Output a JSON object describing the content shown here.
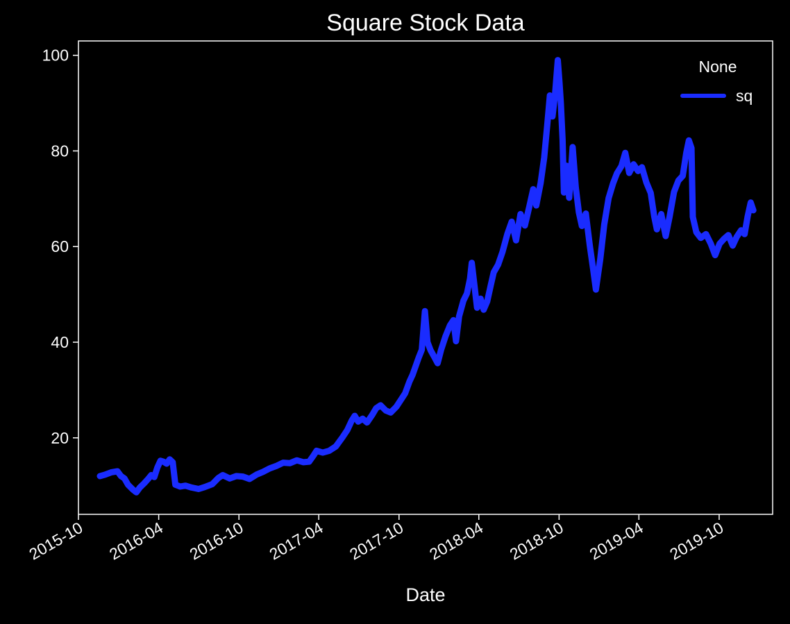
{
  "chart_data": {
    "type": "line",
    "title": "Square Stock Data",
    "xlabel": "Date",
    "ylabel": "",
    "x_ticks": [
      "2015-10",
      "2016-04",
      "2016-10",
      "2017-04",
      "2017-10",
      "2018-04",
      "2018-10",
      "2019-04",
      "2019-10"
    ],
    "y_ticks": [
      "20",
      "40",
      "60",
      "80",
      "100"
    ],
    "xlim": [
      "2015-10-01",
      "2020-01-31"
    ],
    "ylim": [
      4,
      103
    ],
    "grid": false,
    "legend": {
      "title": "None",
      "position": "top-right",
      "entries": [
        "sq"
      ]
    },
    "background": "#000000",
    "series": [
      {
        "name": "sq",
        "color": "#1a2cff",
        "points": [
          [
            "2015-11-19",
            12.0
          ],
          [
            "2015-12-01",
            12.3
          ],
          [
            "2015-12-15",
            12.8
          ],
          [
            "2015-12-29",
            13.0
          ],
          [
            "2016-01-06",
            12.0
          ],
          [
            "2016-01-14",
            11.5
          ],
          [
            "2016-01-22",
            10.2
          ],
          [
            "2016-02-02",
            9.2
          ],
          [
            "2016-02-10",
            8.6
          ],
          [
            "2016-02-18",
            9.6
          ],
          [
            "2016-02-28",
            10.5
          ],
          [
            "2016-03-08",
            11.4
          ],
          [
            "2016-03-15",
            12.2
          ],
          [
            "2016-03-22",
            11.8
          ],
          [
            "2016-03-29",
            13.8
          ],
          [
            "2016-04-05",
            15.2
          ],
          [
            "2016-04-12",
            15.0
          ],
          [
            "2016-04-19",
            14.6
          ],
          [
            "2016-04-26",
            15.5
          ],
          [
            "2016-05-03",
            14.9
          ],
          [
            "2016-05-09",
            10.2
          ],
          [
            "2016-05-20",
            9.8
          ],
          [
            "2016-06-01",
            10.0
          ],
          [
            "2016-06-15",
            9.6
          ],
          [
            "2016-07-01",
            9.3
          ],
          [
            "2016-07-15",
            9.7
          ],
          [
            "2016-08-01",
            10.3
          ],
          [
            "2016-08-15",
            11.6
          ],
          [
            "2016-08-25",
            12.2
          ],
          [
            "2016-09-10",
            11.5
          ],
          [
            "2016-09-25",
            12.0
          ],
          [
            "2016-10-10",
            11.9
          ],
          [
            "2016-10-25",
            11.4
          ],
          [
            "2016-11-10",
            12.3
          ],
          [
            "2016-11-25",
            12.9
          ],
          [
            "2016-12-10",
            13.6
          ],
          [
            "2016-12-25",
            14.1
          ],
          [
            "2017-01-10",
            14.8
          ],
          [
            "2017-01-25",
            14.7
          ],
          [
            "2017-02-10",
            15.3
          ],
          [
            "2017-02-25",
            14.9
          ],
          [
            "2017-03-10",
            15.0
          ],
          [
            "2017-03-20",
            16.3
          ],
          [
            "2017-03-27",
            17.3
          ],
          [
            "2017-04-10",
            16.9
          ],
          [
            "2017-04-25",
            17.3
          ],
          [
            "2017-05-10",
            18.2
          ],
          [
            "2017-05-25",
            20.1
          ],
          [
            "2017-06-05",
            21.6
          ],
          [
            "2017-06-15",
            23.6
          ],
          [
            "2017-06-22",
            24.6
          ],
          [
            "2017-06-30",
            23.4
          ],
          [
            "2017-07-10",
            24.0
          ],
          [
            "2017-07-20",
            23.2
          ],
          [
            "2017-08-01",
            24.8
          ],
          [
            "2017-08-10",
            26.2
          ],
          [
            "2017-08-20",
            26.8
          ],
          [
            "2017-09-01",
            25.7
          ],
          [
            "2017-09-12",
            25.3
          ],
          [
            "2017-09-25",
            26.5
          ],
          [
            "2017-10-05",
            27.9
          ],
          [
            "2017-10-15",
            29.3
          ],
          [
            "2017-10-25",
            31.8
          ],
          [
            "2017-11-01",
            33.2
          ],
          [
            "2017-11-08",
            35.0
          ],
          [
            "2017-11-15",
            36.8
          ],
          [
            "2017-11-22",
            38.4
          ],
          [
            "2017-11-29",
            46.5
          ],
          [
            "2017-12-05",
            40.0
          ],
          [
            "2017-12-12",
            38.3
          ],
          [
            "2017-12-20",
            37.0
          ],
          [
            "2017-12-28",
            35.6
          ],
          [
            "2018-01-05",
            38.4
          ],
          [
            "2018-01-15",
            41.2
          ],
          [
            "2018-01-25",
            43.5
          ],
          [
            "2018-02-02",
            44.6
          ],
          [
            "2018-02-08",
            40.2
          ],
          [
            "2018-02-15",
            45.4
          ],
          [
            "2018-02-25",
            48.7
          ],
          [
            "2018-03-05",
            50.2
          ],
          [
            "2018-03-12",
            53.3
          ],
          [
            "2018-03-16",
            56.6
          ],
          [
            "2018-03-22",
            51.9
          ],
          [
            "2018-03-28",
            47.2
          ],
          [
            "2018-04-05",
            49.1
          ],
          [
            "2018-04-12",
            46.8
          ],
          [
            "2018-04-20",
            48.5
          ],
          [
            "2018-04-28",
            51.8
          ],
          [
            "2018-05-05",
            54.6
          ],
          [
            "2018-05-15",
            56.2
          ],
          [
            "2018-05-25",
            58.9
          ],
          [
            "2018-06-05",
            62.6
          ],
          [
            "2018-06-15",
            65.2
          ],
          [
            "2018-06-25",
            61.3
          ],
          [
            "2018-07-05",
            66.8
          ],
          [
            "2018-07-15",
            64.4
          ],
          [
            "2018-07-25",
            68.3
          ],
          [
            "2018-08-03",
            72.0
          ],
          [
            "2018-08-10",
            68.6
          ],
          [
            "2018-08-20",
            73.3
          ],
          [
            "2018-08-28",
            78.6
          ],
          [
            "2018-09-04",
            85.4
          ],
          [
            "2018-09-10",
            91.6
          ],
          [
            "2018-09-16",
            87.2
          ],
          [
            "2018-09-22",
            92.1
          ],
          [
            "2018-09-28",
            99.0
          ],
          [
            "2018-10-02",
            94.2
          ],
          [
            "2018-10-05",
            90.0
          ],
          [
            "2018-10-09",
            82.4
          ],
          [
            "2018-10-12",
            71.3
          ],
          [
            "2018-10-18",
            76.9
          ],
          [
            "2018-10-24",
            70.2
          ],
          [
            "2018-11-01",
            80.8
          ],
          [
            "2018-11-08",
            72.4
          ],
          [
            "2018-11-15",
            67.2
          ],
          [
            "2018-11-22",
            64.3
          ],
          [
            "2018-12-01",
            66.9
          ],
          [
            "2018-12-10",
            60.2
          ],
          [
            "2018-12-18",
            55.1
          ],
          [
            "2018-12-24",
            51.0
          ],
          [
            "2019-01-03",
            57.4
          ],
          [
            "2019-01-12",
            64.6
          ],
          [
            "2019-01-22",
            70.1
          ],
          [
            "2019-02-01",
            73.2
          ],
          [
            "2019-02-10",
            75.3
          ],
          [
            "2019-02-20",
            76.8
          ],
          [
            "2019-03-01",
            79.6
          ],
          [
            "2019-03-10",
            75.4
          ],
          [
            "2019-03-20",
            77.2
          ],
          [
            "2019-03-30",
            75.8
          ],
          [
            "2019-04-08",
            76.6
          ],
          [
            "2019-04-18",
            73.4
          ],
          [
            "2019-04-28",
            71.2
          ],
          [
            "2019-05-06",
            66.3
          ],
          [
            "2019-05-12",
            63.6
          ],
          [
            "2019-05-22",
            66.8
          ],
          [
            "2019-06-01",
            62.2
          ],
          [
            "2019-06-10",
            66.2
          ],
          [
            "2019-06-20",
            71.4
          ],
          [
            "2019-06-30",
            73.8
          ],
          [
            "2019-07-10",
            74.8
          ],
          [
            "2019-07-18",
            79.6
          ],
          [
            "2019-07-24",
            82.2
          ],
          [
            "2019-07-30",
            80.6
          ],
          [
            "2019-08-02",
            66.2
          ],
          [
            "2019-08-10",
            63.0
          ],
          [
            "2019-08-20",
            61.8
          ],
          [
            "2019-09-01",
            62.6
          ],
          [
            "2019-09-12",
            60.6
          ],
          [
            "2019-09-22",
            58.2
          ],
          [
            "2019-10-02",
            60.6
          ],
          [
            "2019-10-12",
            61.6
          ],
          [
            "2019-10-22",
            62.4
          ],
          [
            "2019-11-01",
            60.2
          ],
          [
            "2019-11-10",
            62.0
          ],
          [
            "2019-11-20",
            63.4
          ],
          [
            "2019-11-28",
            62.6
          ],
          [
            "2019-12-05",
            66.3
          ],
          [
            "2019-12-12",
            69.2
          ],
          [
            "2019-12-18",
            67.6
          ]
        ]
      }
    ]
  }
}
